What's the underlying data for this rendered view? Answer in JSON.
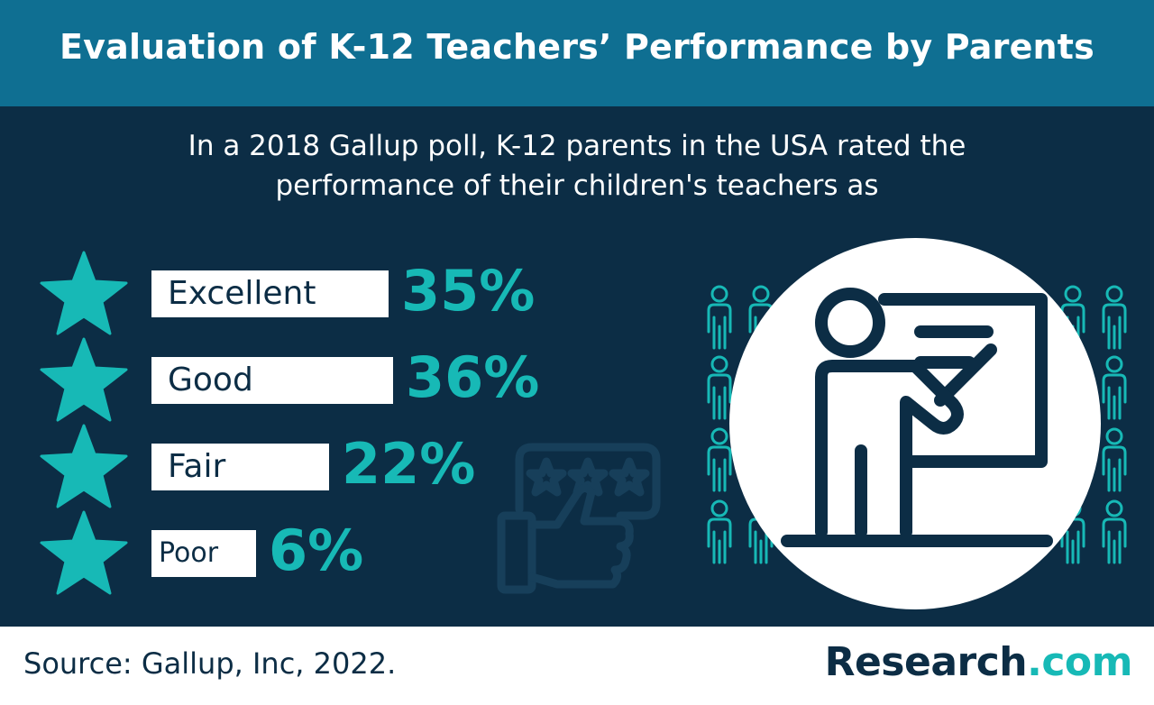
{
  "title": "Evaluation of K-12 Teachers’ Performance by Parents",
  "subtitle": {
    "line1": "In a 2018 Gallup poll, K-12 parents in the USA rated the",
    "line2": "performance of their children's teachers as"
  },
  "chart_data": {
    "type": "bar",
    "categories": [
      "Excellent",
      "Good",
      "Fair",
      "Poor"
    ],
    "values": [
      35,
      36,
      22,
      6
    ],
    "value_labels": [
      "35%",
      "36%",
      "22%",
      "6%"
    ],
    "unit": "%",
    "orientation": "horizontal",
    "title": "Evaluation of K-12 Teachers’ Performance by Parents"
  },
  "icons": [
    "star-icon",
    "thumbs-up-rating-icon",
    "teacher-whiteboard-icon",
    "person-icon"
  ],
  "footer": {
    "source": "Source: Gallup, Inc, 2022.",
    "brand_name": "Research",
    "brand_tld": ".com"
  },
  "colors": {
    "header_bg": "#0f6f92",
    "main_bg": "#0c2d45",
    "accent": "#17b9b6",
    "text_light": "#ffffff",
    "text_dark": "#0c2d45"
  }
}
